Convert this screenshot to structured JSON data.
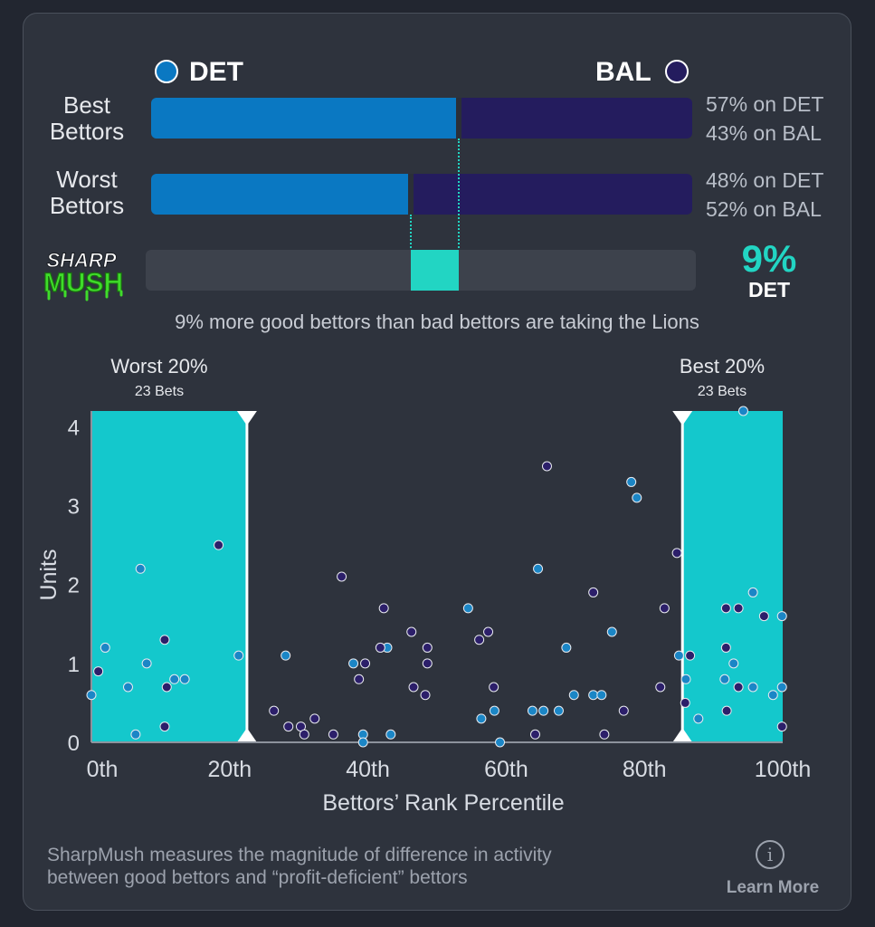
{
  "colors": {
    "det": "#0a78c2",
    "bal": "#241c5e",
    "accent": "#22d5c3",
    "zone": "#14c8cc",
    "dotA": "#1b86c6",
    "dotB": "#2c1f6a"
  },
  "header": {
    "team_left": "DET",
    "team_right": "BAL"
  },
  "rows": [
    {
      "label_line1": "Best",
      "label_line2": "Bettors",
      "det_share": 0.57,
      "pct_det": "57% on DET",
      "pct_bal": "43% on BAL"
    },
    {
      "label_line1": "Worst",
      "label_line2": "Bettors",
      "det_share": 0.48,
      "pct_det": "48% on DET",
      "pct_bal": "52% on BAL"
    }
  ],
  "sharpmush": {
    "logo_line1": "SHARP",
    "logo_line2": "MUSH",
    "value": "9%",
    "team": "DET",
    "caption": "9% more good bettors than bad bettors are taking the Lions"
  },
  "chart_data": {
    "type": "scatter",
    "xlabel": "Bettors’ Rank Percentile",
    "ylabel": "Units",
    "xlim": [
      0,
      100
    ],
    "ylim": [
      0,
      4.2
    ],
    "x_ticks": [
      "0th",
      "20th",
      "40th",
      "60th",
      "80th",
      "100th"
    ],
    "y_ticks": [
      "0",
      "1",
      "2",
      "3",
      "4"
    ],
    "zones": [
      {
        "title": "Worst 20%",
        "subtitle": "23 Bets",
        "from": 0,
        "to": 22.5
      },
      {
        "title": "Best 20%",
        "subtitle": "23 Bets",
        "from": 85.5,
        "to": 100
      }
    ],
    "series": [
      {
        "color_key": "dotA",
        "points": [
          [
            0,
            0.6
          ],
          [
            2,
            1.2
          ],
          [
            5.3,
            0.7
          ],
          [
            6.4,
            0.1
          ],
          [
            7.1,
            2.2
          ],
          [
            8,
            1
          ],
          [
            12,
            0.8
          ],
          [
            13.5,
            0.8
          ],
          [
            21.3,
            1.1
          ],
          [
            28.1,
            1.1
          ],
          [
            37.9,
            1
          ],
          [
            39.3,
            0.1
          ],
          [
            39.3,
            0
          ],
          [
            42.8,
            1.2
          ],
          [
            43.3,
            0.1
          ],
          [
            54.5,
            1.7
          ],
          [
            56.4,
            0.3
          ],
          [
            58.3,
            0.4
          ],
          [
            59.1,
            0
          ],
          [
            63.8,
            0.4
          ],
          [
            64.6,
            2.2
          ],
          [
            65.4,
            0.4
          ],
          [
            67.6,
            0.4
          ],
          [
            68.7,
            1.2
          ],
          [
            69.8,
            0.6
          ],
          [
            72.6,
            0.6
          ],
          [
            73.8,
            0.6
          ],
          [
            75.3,
            1.4
          ],
          [
            78.1,
            3.3
          ],
          [
            78.9,
            3.1
          ],
          [
            85,
            1.1
          ],
          [
            86,
            0.8
          ],
          [
            87.8,
            0.3
          ],
          [
            91.6,
            0.8
          ],
          [
            92.9,
            1
          ],
          [
            94.3,
            4.2
          ],
          [
            95.7,
            0.7
          ],
          [
            95.7,
            1.9
          ],
          [
            98.6,
            0.6
          ],
          [
            99.9,
            0.7
          ],
          [
            99.9,
            1.6
          ]
        ]
      },
      {
        "color_key": "dotB",
        "points": [
          [
            1,
            0.9
          ],
          [
            10.6,
            1.3
          ],
          [
            10.6,
            0.2
          ],
          [
            10.9,
            0.7
          ],
          [
            18.4,
            2.5
          ],
          [
            26.4,
            0.4
          ],
          [
            28.5,
            0.2
          ],
          [
            30.3,
            0.2
          ],
          [
            30.8,
            0.1
          ],
          [
            32.3,
            0.3
          ],
          [
            35,
            0.1
          ],
          [
            36.2,
            2.1
          ],
          [
            38.7,
            0.8
          ],
          [
            39.6,
            1
          ],
          [
            41.8,
            1.2
          ],
          [
            42.3,
            1.7
          ],
          [
            46.3,
            1.4
          ],
          [
            46.6,
            0.7
          ],
          [
            48.3,
            0.6
          ],
          [
            48.6,
            1.2
          ],
          [
            48.6,
            1
          ],
          [
            56.1,
            1.3
          ],
          [
            57.4,
            1.4
          ],
          [
            58.2,
            0.7
          ],
          [
            64.2,
            0.1
          ],
          [
            65.9,
            3.5
          ],
          [
            72.6,
            1.9
          ],
          [
            74.2,
            0.1
          ],
          [
            77,
            0.4
          ],
          [
            82.3,
            0.7
          ],
          [
            82.9,
            1.7
          ],
          [
            84.7,
            2.4
          ],
          [
            85.9,
            0.5
          ],
          [
            86.6,
            1.1
          ],
          [
            91.8,
            1.2
          ],
          [
            91.8,
            1.7
          ],
          [
            91.9,
            0.4
          ],
          [
            93.6,
            1.7
          ],
          [
            93.6,
            0.7
          ],
          [
            97.3,
            1.6
          ],
          [
            99.9,
            0.2
          ]
        ]
      }
    ]
  },
  "footer": {
    "line1": "SharpMush measures the magnitude of difference in activity",
    "line2": "between good bettors and “profit-deficient” bettors",
    "info_glyph": "i",
    "learn_more": "Learn More"
  }
}
